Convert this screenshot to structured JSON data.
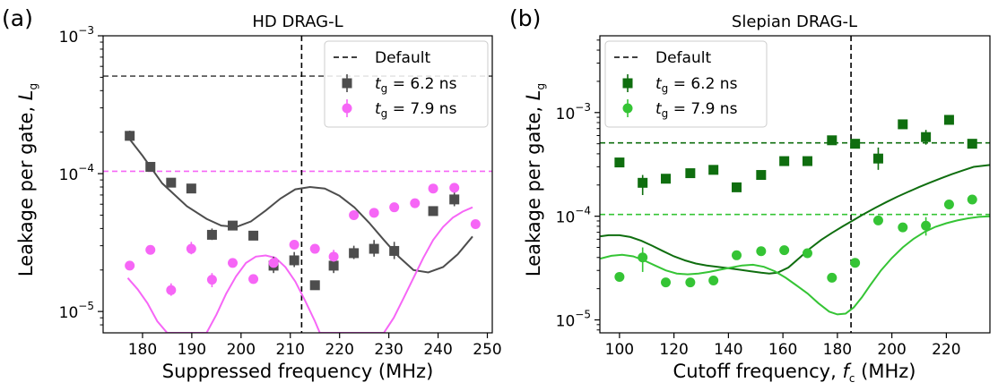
{
  "chart_data": [
    {
      "type": "scatter",
      "panel_label": "(a)",
      "title": "HD DRAG-L",
      "xlabel": "Suppressed frequency (MHz)",
      "ylabel_text": "Leakage per gate, ",
      "ylabel_var": "L",
      "ylabel_sub": "g",
      "xlim": [
        172,
        251
      ],
      "ylim": [
        7e-06,
        0.001
      ],
      "yscale": "log",
      "xticks": [
        180,
        190,
        200,
        210,
        220,
        230,
        240,
        250
      ],
      "yticks": [
        {
          "value": 0.001,
          "mantissa": "10",
          "exp": "−3"
        },
        {
          "value": 0.0001,
          "mantissa": "10",
          "exp": "−4"
        },
        {
          "value": 1e-05,
          "mantissa": "10",
          "exp": "−5"
        }
      ],
      "vline": 212.3,
      "legend": {
        "position": "top-right",
        "default_label": "Default",
        "entries": [
          {
            "prefix": "t",
            "sub": "g",
            "rest": " = 6.2 ns"
          },
          {
            "prefix": "t",
            "sub": "g",
            "rest": " = 7.9 ns"
          }
        ]
      },
      "series": [
        {
          "name": "tg = 6.2 ns",
          "color": "#4d4d4d",
          "marker": "square",
          "default_level": 0.00051,
          "points": [
            {
              "x": 177.4,
              "y": 0.000188,
              "lo": 0.000175,
              "hi": 0.000205
            },
            {
              "x": 181.6,
              "y": 0.000112
            },
            {
              "x": 185.8,
              "y": 8.6e-05
            },
            {
              "x": 189.9,
              "y": 7.8e-05
            },
            {
              "x": 194.1,
              "y": 3.6e-05,
              "lo": 3.3e-05,
              "hi": 4e-05
            },
            {
              "x": 198.3,
              "y": 4.2e-05
            },
            {
              "x": 202.5,
              "y": 3.55e-05
            },
            {
              "x": 206.6,
              "y": 2.15e-05,
              "lo": 1.9e-05,
              "hi": 2.5e-05
            },
            {
              "x": 210.8,
              "y": 2.35e-05,
              "lo": 2.1e-05,
              "hi": 2.7e-05
            },
            {
              "x": 215.0,
              "y": 1.55e-05
            },
            {
              "x": 218.8,
              "y": 2.15e-05,
              "lo": 1.9e-05,
              "hi": 2.4e-05
            },
            {
              "x": 222.9,
              "y": 2.65e-05,
              "lo": 2.4e-05,
              "hi": 3e-05
            },
            {
              "x": 227.0,
              "y": 2.85e-05,
              "lo": 2.5e-05,
              "hi": 3.3e-05
            },
            {
              "x": 231.1,
              "y": 2.75e-05,
              "lo": 2.4e-05,
              "hi": 3.2e-05
            },
            {
              "x": 239.0,
              "y": 5.35e-05
            },
            {
              "x": 243.3,
              "y": 6.5e-05,
              "lo": 5.8e-05,
              "hi": 7.6e-05
            }
          ],
          "curve": [
            [
              177,
              0.000185
            ],
            [
              180,
              0.000135
            ],
            [
              184,
              8.5e-05
            ],
            [
              189,
              5.8e-05
            ],
            [
              193,
              4.7e-05
            ],
            [
              196,
              4.2e-05
            ],
            [
              199,
              4.1e-05
            ],
            [
              202,
              4.5e-05
            ],
            [
              205,
              5.4e-05
            ],
            [
              208,
              6.6e-05
            ],
            [
              211,
              7.7e-05
            ],
            [
              214,
              8e-05
            ],
            [
              217,
              7.8e-05
            ],
            [
              220,
              6.9e-05
            ],
            [
              223,
              5.7e-05
            ],
            [
              226,
              4.4e-05
            ],
            [
              229,
              3.3e-05
            ],
            [
              232,
              2.5e-05
            ],
            [
              235,
              2e-05
            ],
            [
              238,
              1.92e-05
            ],
            [
              241,
              2.1e-05
            ],
            [
              244,
              2.6e-05
            ],
            [
              247,
              3.5e-05
            ]
          ]
        },
        {
          "name": "tg = 7.9 ns",
          "color": "#f666f6",
          "marker": "circle",
          "default_level": 0.000104,
          "points": [
            {
              "x": 177.4,
              "y": 2.15e-05
            },
            {
              "x": 181.6,
              "y": 2.8e-05
            },
            {
              "x": 185.8,
              "y": 1.43e-05,
              "lo": 1.3e-05,
              "hi": 1.6e-05
            },
            {
              "x": 189.9,
              "y": 2.85e-05,
              "lo": 2.6e-05,
              "hi": 3.2e-05
            },
            {
              "x": 194.1,
              "y": 1.7e-05,
              "lo": 1.5e-05,
              "hi": 1.9e-05
            },
            {
              "x": 198.3,
              "y": 2.25e-05
            },
            {
              "x": 202.5,
              "y": 1.72e-05
            },
            {
              "x": 206.6,
              "y": 2.25e-05
            },
            {
              "x": 210.8,
              "y": 3.05e-05
            },
            {
              "x": 215.0,
              "y": 2.85e-05
            },
            {
              "x": 218.8,
              "y": 2.5e-05,
              "lo": 2.3e-05,
              "hi": 2.8e-05
            },
            {
              "x": 222.9,
              "y": 5e-05
            },
            {
              "x": 227.0,
              "y": 5.2e-05
            },
            {
              "x": 231.1,
              "y": 5.7e-05
            },
            {
              "x": 235.3,
              "y": 6.1e-05
            },
            {
              "x": 239.0,
              "y": 7.8e-05
            },
            {
              "x": 243.3,
              "y": 7.9e-05
            },
            {
              "x": 247.6,
              "y": 4.3e-05
            }
          ],
          "curve": [
            [
              177,
              1.75e-05
            ],
            [
              179,
              1.45e-05
            ],
            [
              181,
              1.15e-05
            ],
            [
              183,
              8.5e-06
            ],
            [
              185,
              7e-06
            ],
            [
              193,
              7e-06
            ],
            [
              195,
              9.5e-06
            ],
            [
              197,
              1.35e-05
            ],
            [
              199,
              1.8e-05
            ],
            [
              201,
              2.25e-05
            ],
            [
              203,
              2.5e-05
            ],
            [
              205,
              2.55e-05
            ],
            [
              207,
              2.45e-05
            ],
            [
              209,
              2.1e-05
            ],
            [
              211,
              1.65e-05
            ],
            [
              213,
              1.2e-05
            ],
            [
              215,
              8.5e-06
            ],
            [
              216,
              7e-06
            ],
            [
              229,
              7e-06
            ],
            [
              231,
              9e-06
            ],
            [
              233,
              1.25e-05
            ],
            [
              235,
              1.75e-05
            ],
            [
              237,
              2.45e-05
            ],
            [
              239,
              3.3e-05
            ],
            [
              241,
              4.1e-05
            ],
            [
              243,
              4.8e-05
            ],
            [
              245,
              5.3e-05
            ],
            [
              247,
              5.7e-05
            ]
          ]
        }
      ]
    },
    {
      "type": "scatter",
      "panel_label": "(b)",
      "title": "Slepian DRAG-L",
      "xlabel_text": "Cutoff frequency, ",
      "xlabel_var": "f",
      "xlabel_sub": "c",
      "xlabel_unit": " (MHz)",
      "ylabel_text": "Leakage per gate, ",
      "ylabel_var": "L",
      "ylabel_sub": "g",
      "xlim": [
        92.8,
        236
      ],
      "ylim": [
        7.5e-06,
        0.0055
      ],
      "yscale": "log",
      "xticks": [
        100,
        120,
        140,
        160,
        180,
        200,
        220
      ],
      "yticks": [
        {
          "value": 0.001,
          "mantissa": "10",
          "exp": "−3"
        },
        {
          "value": 0.0001,
          "mantissa": "10",
          "exp": "−4"
        },
        {
          "value": 1e-05,
          "mantissa": "10",
          "exp": "−5"
        }
      ],
      "vline": 185,
      "legend": {
        "position": "top-left",
        "default_label": "Default",
        "entries": [
          {
            "prefix": "t",
            "sub": "g",
            "rest": " = 6.2 ns"
          },
          {
            "prefix": "t",
            "sub": "g",
            "rest": " = 7.9 ns"
          }
        ]
      },
      "series": [
        {
          "name": "tg = 6.2 ns",
          "color": "#0f6e0f",
          "marker": "square",
          "default_level": 0.00051,
          "points": [
            {
              "x": 100,
              "y": 0.00033
            },
            {
              "x": 108.5,
              "y": 0.00021,
              "lo": 0.00016,
              "hi": 0.00025
            },
            {
              "x": 117,
              "y": 0.00023
            },
            {
              "x": 126,
              "y": 0.00026
            },
            {
              "x": 134.5,
              "y": 0.00028
            },
            {
              "x": 143,
              "y": 0.00019
            },
            {
              "x": 152,
              "y": 0.00025
            },
            {
              "x": 160.5,
              "y": 0.00034
            },
            {
              "x": 169,
              "y": 0.00034
            },
            {
              "x": 178,
              "y": 0.00054
            },
            {
              "x": 186.5,
              "y": 0.0005
            },
            {
              "x": 195,
              "y": 0.00036,
              "lo": 0.00028,
              "hi": 0.00046
            },
            {
              "x": 204,
              "y": 0.00077
            },
            {
              "x": 212.5,
              "y": 0.00058,
              "lo": 0.00049,
              "hi": 0.00068
            },
            {
              "x": 221,
              "y": 0.00085
            },
            {
              "x": 229.5,
              "y": 0.0005,
              "lo": 0.00045,
              "hi": 0.00055
            }
          ],
          "curve": [
            [
              93,
              6.4e-05
            ],
            [
              96,
              6.55e-05
            ],
            [
              100,
              6.55e-05
            ],
            [
              104,
              6.3e-05
            ],
            [
              108,
              5.8e-05
            ],
            [
              112,
              5.2e-05
            ],
            [
              116,
              4.6e-05
            ],
            [
              120,
              4.1e-05
            ],
            [
              124,
              3.75e-05
            ],
            [
              128,
              3.5e-05
            ],
            [
              132,
              3.35e-05
            ],
            [
              136,
              3.25e-05
            ],
            [
              140,
              3.15e-05
            ],
            [
              144,
              3.05e-05
            ],
            [
              148,
              2.95e-05
            ],
            [
              152,
              2.85e-05
            ],
            [
              155,
              2.8e-05
            ],
            [
              158,
              2.85e-05
            ],
            [
              162,
              3.2e-05
            ],
            [
              166,
              3.95e-05
            ],
            [
              170,
              4.9e-05
            ],
            [
              174,
              5.9e-05
            ],
            [
              178,
              6.9e-05
            ],
            [
              182,
              8e-05
            ],
            [
              186,
              9.2e-05
            ],
            [
              190,
              0.000106
            ],
            [
              194,
              0.000121
            ],
            [
              198,
              0.000137
            ],
            [
              202,
              0.000154
            ],
            [
              206,
              0.000172
            ],
            [
              210,
              0.000191
            ],
            [
              214,
              0.000211
            ],
            [
              218,
              0.000232
            ],
            [
              222,
              0.000254
            ],
            [
              226,
              0.000276
            ],
            [
              230,
              0.000299
            ],
            [
              236,
              0.000312
            ]
          ]
        },
        {
          "name": "tg = 7.9 ns",
          "color": "#35c435",
          "marker": "circle",
          "default_level": 0.000104,
          "points": [
            {
              "x": 100,
              "y": 2.6e-05
            },
            {
              "x": 108.5,
              "y": 4e-05,
              "lo": 2.9e-05,
              "hi": 5e-05
            },
            {
              "x": 117,
              "y": 2.3e-05
            },
            {
              "x": 126,
              "y": 2.3e-05
            },
            {
              "x": 134.5,
              "y": 2.4e-05
            },
            {
              "x": 143,
              "y": 4.2e-05
            },
            {
              "x": 152,
              "y": 4.6e-05
            },
            {
              "x": 160.5,
              "y": 4.7e-05
            },
            {
              "x": 169,
              "y": 4.4e-05
            },
            {
              "x": 178,
              "y": 2.55e-05
            },
            {
              "x": 186.5,
              "y": 3.55e-05
            },
            {
              "x": 195,
              "y": 9.1e-05
            },
            {
              "x": 204,
              "y": 7.8e-05
            },
            {
              "x": 212.5,
              "y": 8.1e-05,
              "lo": 6.5e-05,
              "hi": 9.8e-05
            },
            {
              "x": 221,
              "y": 0.00013
            },
            {
              "x": 229.5,
              "y": 0.000145
            }
          ],
          "curve": [
            [
              93,
              3.9e-05
            ],
            [
              97,
              4.15e-05
            ],
            [
              101,
              4.25e-05
            ],
            [
              105,
              4.1e-05
            ],
            [
              109,
              3.75e-05
            ],
            [
              113,
              3.35e-05
            ],
            [
              117,
              3e-05
            ],
            [
              121,
              2.8e-05
            ],
            [
              125,
              2.75e-05
            ],
            [
              129,
              2.8e-05
            ],
            [
              133,
              2.9e-05
            ],
            [
              137,
              3.05e-05
            ],
            [
              141,
              3.2e-05
            ],
            [
              145,
              3.35e-05
            ],
            [
              149,
              3.4e-05
            ],
            [
              153,
              3.25e-05
            ],
            [
              157,
              2.95e-05
            ],
            [
              161,
              2.55e-05
            ],
            [
              165,
              2.15e-05
            ],
            [
              169,
              1.8e-05
            ],
            [
              173,
              1.45e-05
            ],
            [
              177,
              1.2e-05
            ],
            [
              180,
              1.13e-05
            ],
            [
              183,
              1.15e-05
            ],
            [
              186,
              1.32e-05
            ],
            [
              189,
              1.65e-05
            ],
            [
              192,
              2.15e-05
            ],
            [
              196,
              3e-05
            ],
            [
              200,
              3.95e-05
            ],
            [
              204,
              5e-05
            ],
            [
              208,
              6.05e-05
            ],
            [
              212,
              7.05e-05
            ],
            [
              216,
              7.9e-05
            ],
            [
              220,
              8.55e-05
            ],
            [
              224,
              9.1e-05
            ],
            [
              228,
              9.55e-05
            ],
            [
              232,
              9.85e-05
            ],
            [
              236,
              0.0001
            ]
          ]
        }
      ]
    }
  ]
}
